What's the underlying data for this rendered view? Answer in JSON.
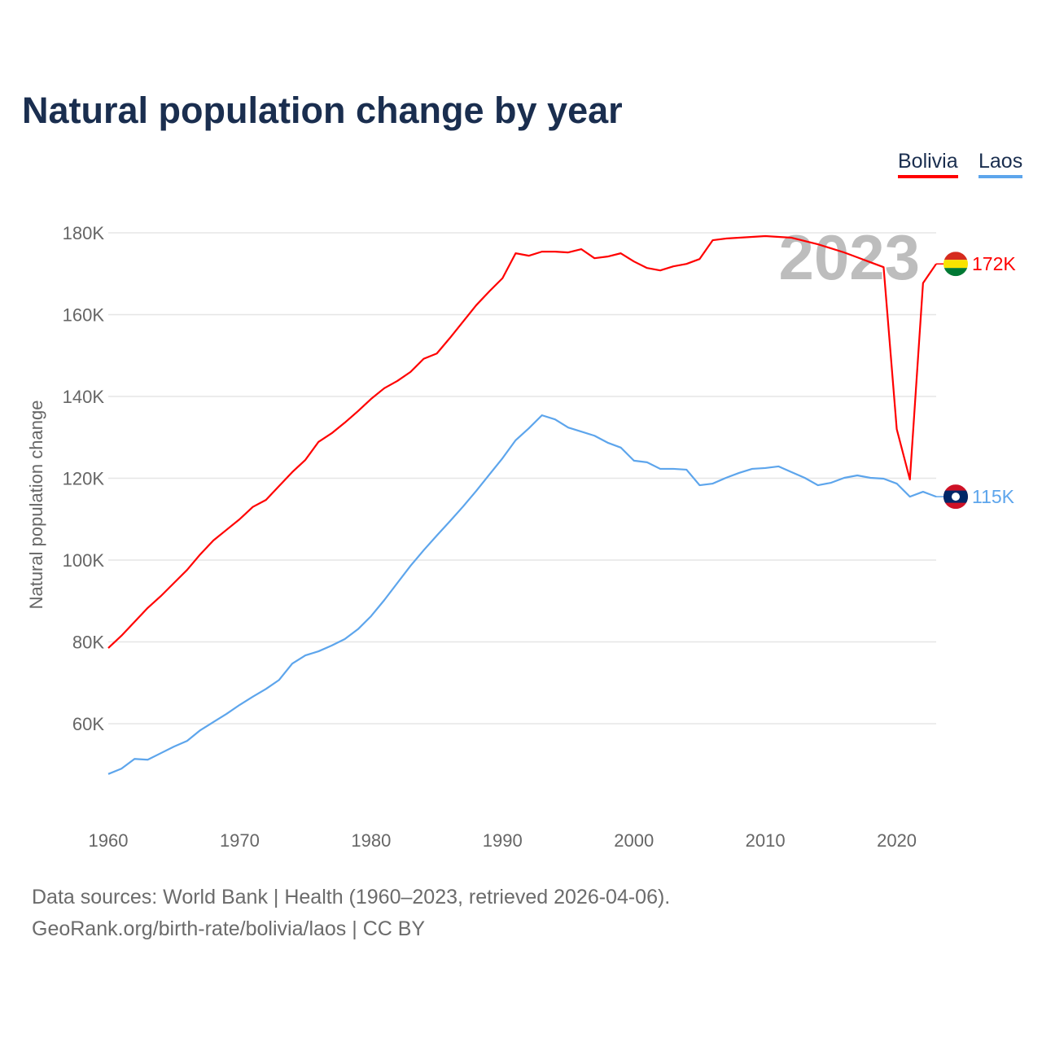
{
  "title": "Natural population change by year",
  "footer": {
    "line1": "Data sources: World Bank | Health (1960–2023, retrieved 2026-04-06).",
    "line2": "GeoRank.org/birth-rate/bolivia/laos | CC BY"
  },
  "chart_data": {
    "type": "line",
    "title": "Natural population change by year",
    "xlabel": "",
    "ylabel": "Natural population change",
    "year_watermark": "2023",
    "x": [
      1960,
      1961,
      1962,
      1963,
      1964,
      1965,
      1966,
      1967,
      1968,
      1969,
      1970,
      1971,
      1972,
      1973,
      1974,
      1975,
      1976,
      1977,
      1978,
      1979,
      1980,
      1981,
      1982,
      1983,
      1984,
      1985,
      1986,
      1987,
      1988,
      1989,
      1990,
      1991,
      1992,
      1993,
      1994,
      1995,
      1996,
      1997,
      1998,
      1999,
      2000,
      2001,
      2002,
      2003,
      2004,
      2005,
      2006,
      2007,
      2008,
      2009,
      2010,
      2011,
      2012,
      2013,
      2014,
      2015,
      2016,
      2017,
      2018,
      2019,
      2020,
      2021,
      2022,
      2023
    ],
    "xlim": [
      1960,
      2023
    ],
    "ylim": [
      40000,
      190000
    ],
    "xticks": [
      "1960",
      "1970",
      "1980",
      "1990",
      "2000",
      "2010",
      "2020"
    ],
    "xtick_values": [
      1960,
      1970,
      1980,
      1990,
      2000,
      2010,
      2020
    ],
    "yticks": [
      "60K",
      "80K",
      "100K",
      "120K",
      "140K",
      "160K",
      "180K"
    ],
    "ytick_values": [
      60000,
      80000,
      100000,
      120000,
      140000,
      160000,
      180000
    ],
    "grid": true,
    "legend_position": "top-right",
    "series": [
      {
        "name": "Bolivia",
        "color": "#ff0000",
        "flag_colors": [
          "#d52b1e",
          "#f9e300",
          "#007934"
        ],
        "end_label": "172K",
        "values": [
          78500,
          81500,
          84900,
          88300,
          91200,
          94400,
          97600,
          101400,
          104800,
          107400,
          110000,
          113000,
          114700,
          118100,
          121500,
          124500,
          128900,
          131000,
          133600,
          136400,
          139400,
          142000,
          143800,
          146000,
          149200,
          150500,
          154300,
          158300,
          162300,
          165700,
          168900,
          175000,
          174400,
          175400,
          175400,
          175200,
          176000,
          173800,
          174200,
          175000,
          173000,
          171400,
          170800,
          171800,
          172400,
          173600,
          178200,
          178600,
          178800,
          179000,
          179200,
          179000,
          178800,
          178000,
          177200,
          176200,
          175200,
          174000,
          172800,
          171600,
          132000,
          119700,
          167700,
          172400
        ]
      },
      {
        "name": "Laos",
        "color": "#5da5ec",
        "flag_colors": [
          "#ce1126",
          "#002868",
          "#ffffff"
        ],
        "end_label": "115K",
        "values": [
          47700,
          49000,
          51400,
          51200,
          52800,
          54400,
          55800,
          58400,
          60400,
          62400,
          64600,
          66600,
          68500,
          70700,
          74700,
          76700,
          77700,
          79100,
          80700,
          83100,
          86300,
          90200,
          94400,
          98600,
          102400,
          106000,
          109500,
          113100,
          116900,
          120900,
          124900,
          129300,
          132200,
          135400,
          134400,
          132400,
          131400,
          130400,
          128700,
          127500,
          124300,
          123900,
          122300,
          122300,
          122100,
          118300,
          118700,
          120100,
          121300,
          122300,
          122500,
          122900,
          121500,
          120100,
          118300,
          118900,
          120100,
          120700,
          120100,
          119900,
          118700,
          115500,
          116700,
          115500
        ]
      }
    ]
  }
}
